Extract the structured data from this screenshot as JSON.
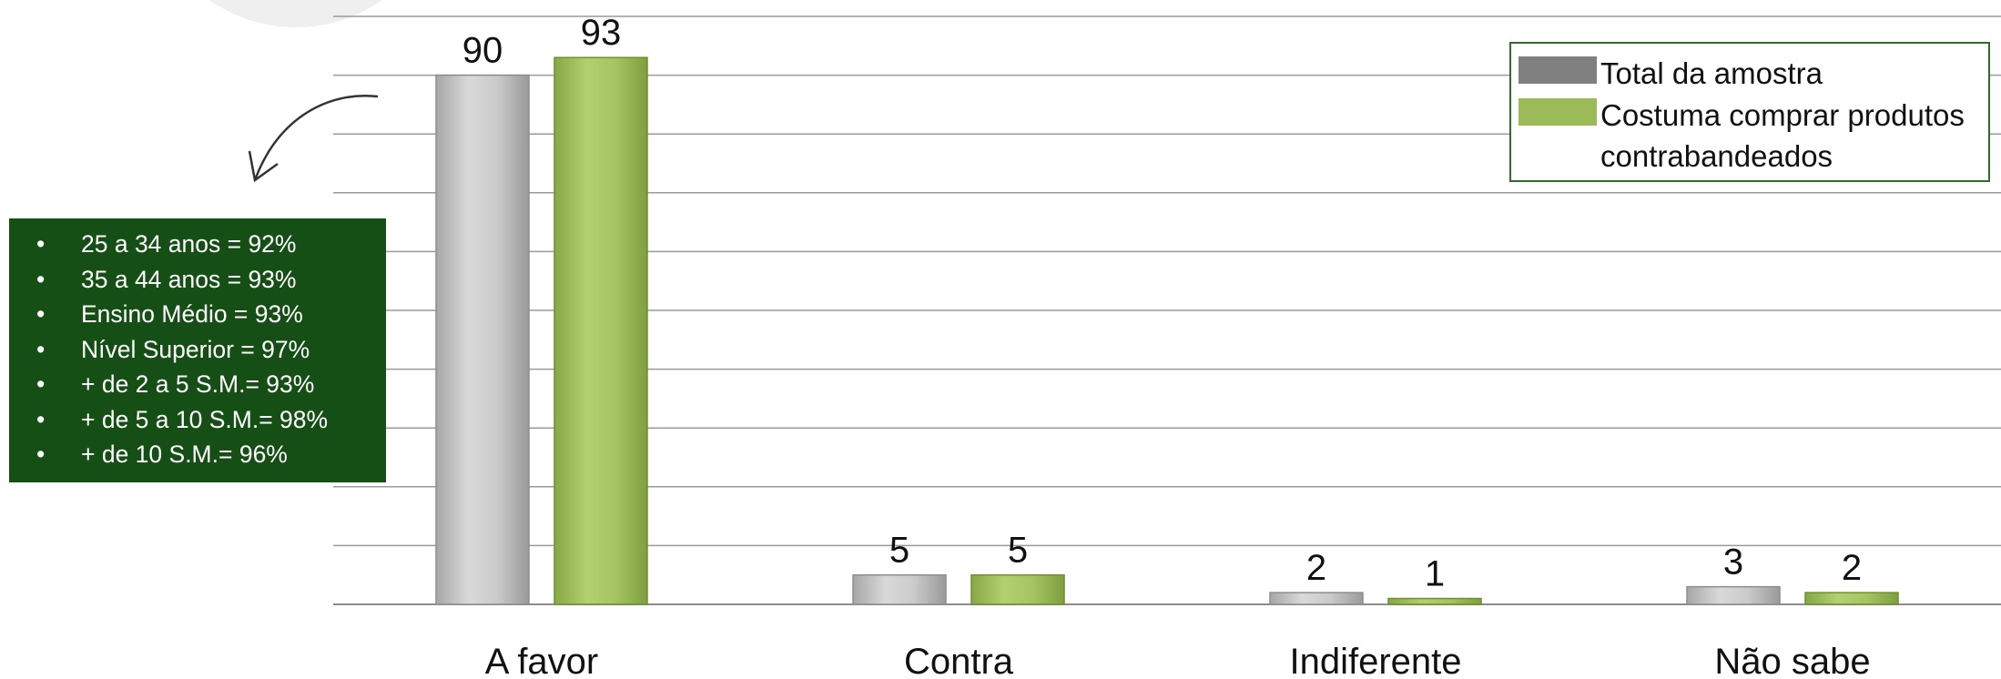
{
  "chart_data": {
    "type": "bar",
    "categories": [
      "A favor",
      "Contra",
      "Indiferente",
      "Não sabe"
    ],
    "series": [
      {
        "name": "Total da amostra",
        "values": [
          90,
          5,
          2,
          3
        ],
        "color": "#c8c8c8"
      },
      {
        "name": "Costuma comprar produtos contrabandeados",
        "values": [
          93,
          5,
          1,
          2
        ],
        "color": "#a5c45f"
      }
    ],
    "ylim": [
      0,
      100
    ],
    "grid": true,
    "legend_position": "top-right"
  },
  "legend": {
    "swatch_colors": [
      "#808080",
      "#9bbb59"
    ]
  },
  "callout": {
    "background": "#154f15",
    "items": [
      "25 a 34 anos = 92%",
      "35 a 44 anos = 93%",
      "Ensino Médio = 93%",
      "Nível Superior = 97%",
      "+ de 2 a 5 S.M.= 93%",
      "+ de 5 a 10 S.M.= 98%",
      "+ de 10 S.M.= 96%"
    ]
  }
}
